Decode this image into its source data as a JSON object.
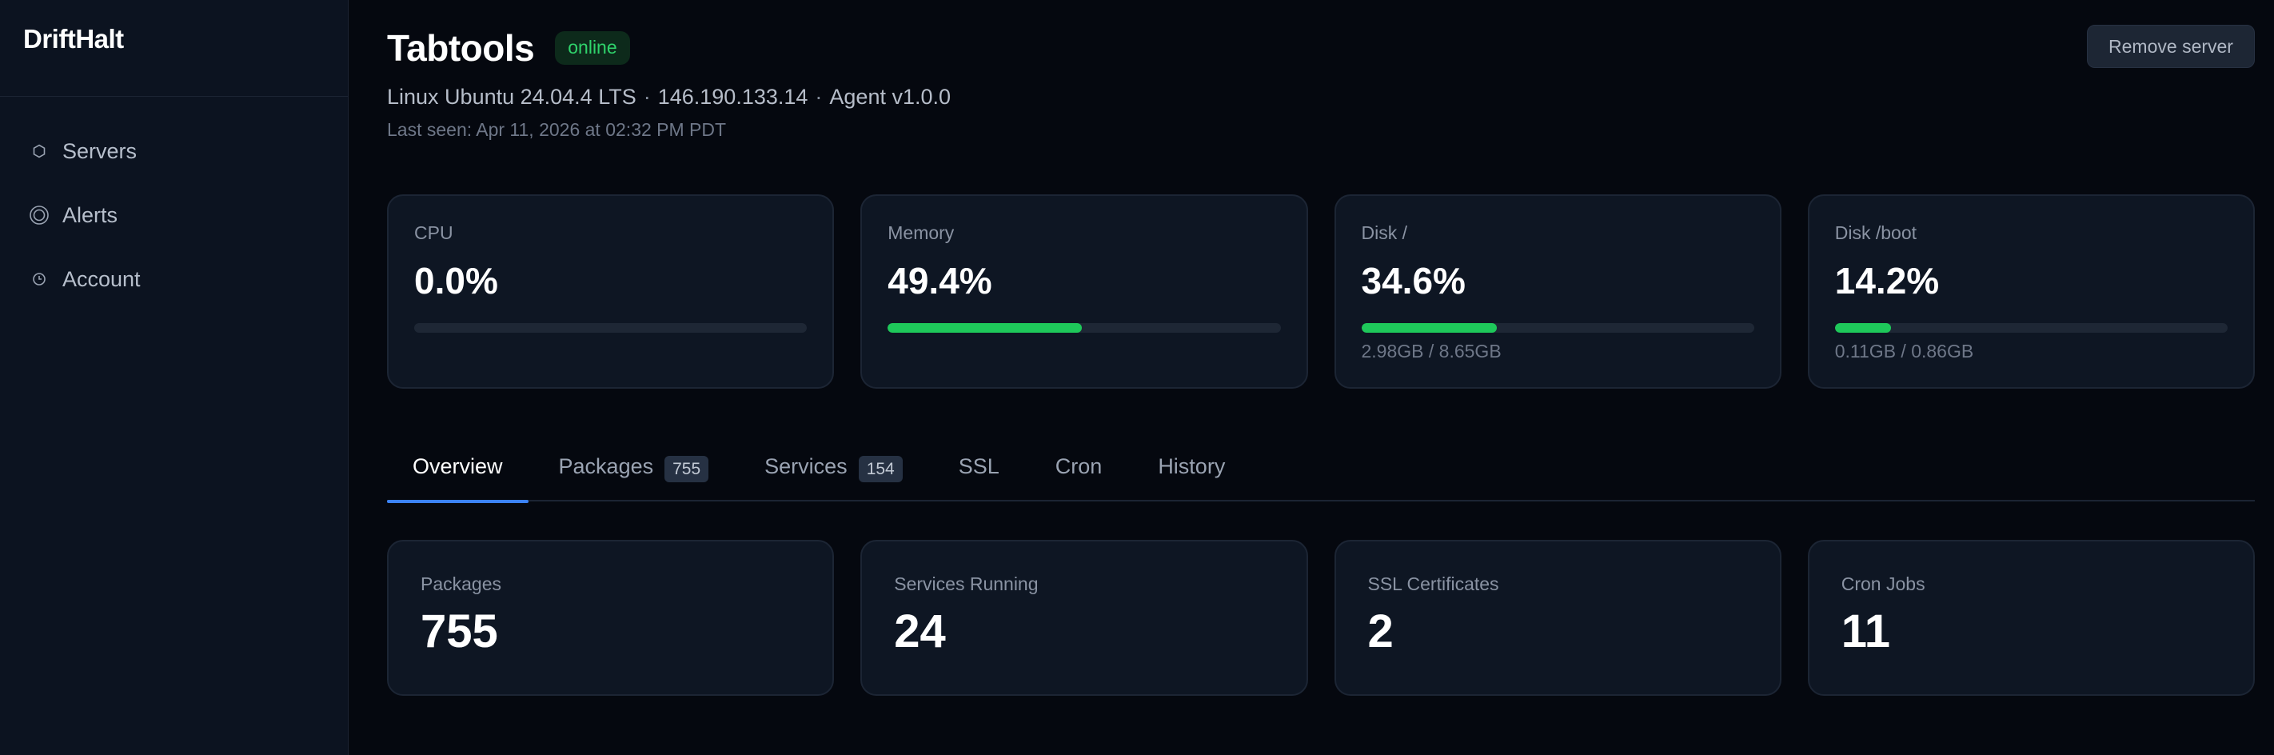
{
  "app": {
    "brand": "DriftHalt"
  },
  "sidebar": {
    "items": [
      {
        "label": "Servers",
        "icon": "hexagon-icon"
      },
      {
        "label": "Alerts",
        "icon": "bell-ring-icon"
      },
      {
        "label": "Account",
        "icon": "clock-icon"
      }
    ]
  },
  "header": {
    "title": "Tabtools",
    "status": "online",
    "os": "Linux Ubuntu 24.04.4 LTS",
    "ip": "146.190.133.14",
    "agent": "Agent v1.0.0",
    "separator": "·",
    "last_seen": "Last seen: Apr 11, 2026 at 02:32 PM PDT",
    "remove_label": "Remove server"
  },
  "metrics": [
    {
      "label": "CPU",
      "value": "0.0%",
      "percent": 0.0,
      "sub": ""
    },
    {
      "label": "Memory",
      "value": "49.4%",
      "percent": 49.4,
      "sub": ""
    },
    {
      "label": "Disk /",
      "value": "34.6%",
      "percent": 34.6,
      "sub": "2.98GB / 8.65GB"
    },
    {
      "label": "Disk /boot",
      "value": "14.2%",
      "percent": 14.2,
      "sub": "0.11GB / 0.86GB"
    }
  ],
  "tabs": [
    {
      "label": "Overview",
      "count": ""
    },
    {
      "label": "Packages",
      "count": "755"
    },
    {
      "label": "Services",
      "count": "154"
    },
    {
      "label": "SSL",
      "count": ""
    },
    {
      "label": "Cron",
      "count": ""
    },
    {
      "label": "History",
      "count": ""
    }
  ],
  "stats": [
    {
      "label": "Packages",
      "value": "755"
    },
    {
      "label": "Services Running",
      "value": "24"
    },
    {
      "label": "SSL Certificates",
      "value": "2"
    },
    {
      "label": "Cron Jobs",
      "value": "11"
    }
  ],
  "colors": {
    "accent": "#3b82f6",
    "progress": "#1ec85a",
    "online": "#2fd36b",
    "background": "#05080f",
    "sidebar": "#0c1320",
    "card": "#0e1623"
  }
}
